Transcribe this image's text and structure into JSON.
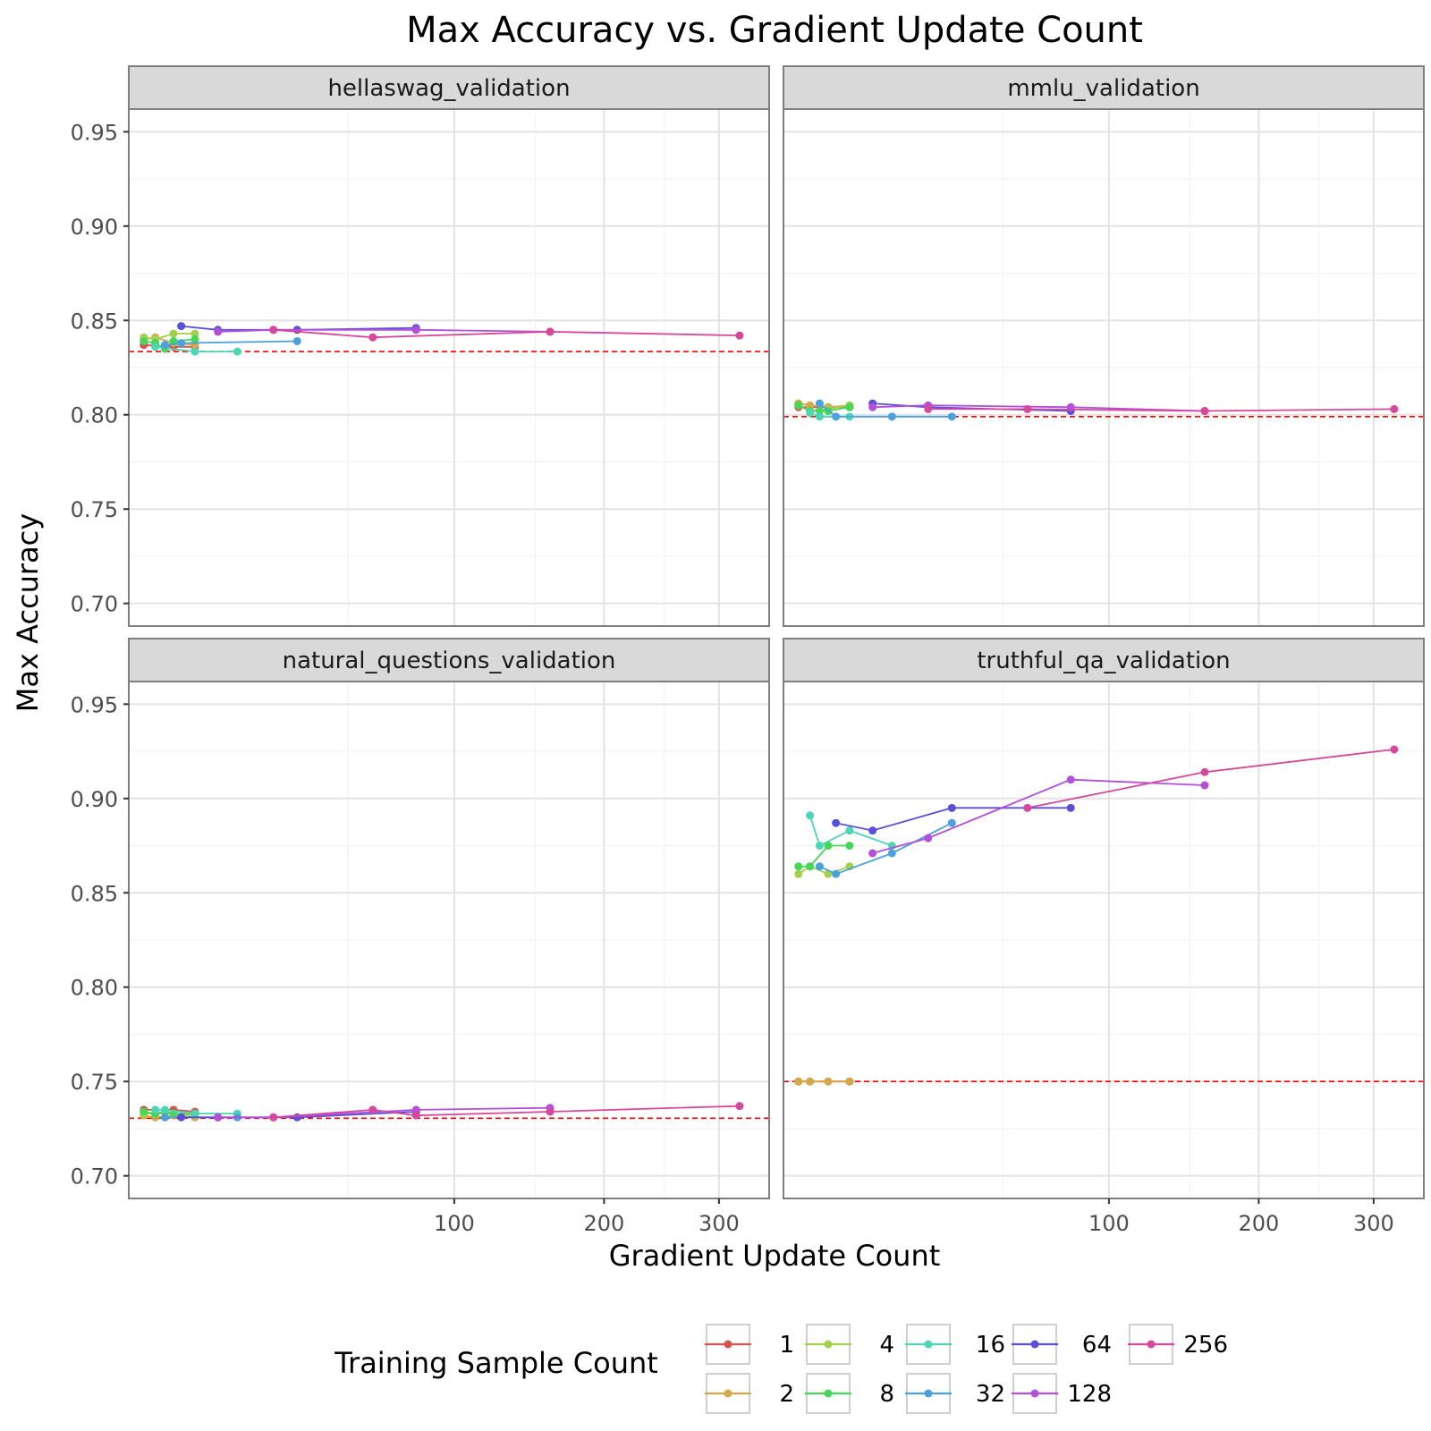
{
  "chart_data": {
    "type": "line",
    "title": "Max Accuracy vs. Gradient Update Count",
    "xlabel": "Gradient Update Count",
    "ylabel": "Max Accuracy",
    "x_scale": "sqrt",
    "xlim": [
      1,
      350
    ],
    "ylim": [
      0.688,
      0.962
    ],
    "x_ticks": [
      100,
      200,
      300
    ],
    "y_ticks": [
      0.7,
      0.75,
      0.8,
      0.85,
      0.9,
      0.95
    ],
    "y_tick_labels": [
      "0.70",
      "0.75",
      "0.80",
      "0.85",
      "0.90",
      "0.95"
    ],
    "grid": true,
    "legend": {
      "title": "Training Sample Count",
      "position": "bottom",
      "entries": [
        "1",
        "2",
        "4",
        "8",
        "16",
        "32",
        "64",
        "128",
        "256"
      ]
    },
    "colors": {
      "1": "#d6524e",
      "2": "#d4a94c",
      "4": "#a4d14d",
      "8": "#47d65a",
      "16": "#4dd6b4",
      "32": "#4ba1dc",
      "64": "#5a4fd8",
      "128": "#b34fd9",
      "256": "#d6489b"
    },
    "baseline_color": "#ff0000",
    "panels": [
      {
        "name": "hellaswag_validation",
        "baseline": 0.8335,
        "series": [
          {
            "name": "1",
            "points": [
              [
                2,
                0.837
              ],
              [
                5,
                0.836
              ],
              [
                8,
                0.836
              ]
            ]
          },
          {
            "name": "2",
            "points": [
              [
                2,
                0.84
              ],
              [
                3,
                0.841
              ],
              [
                5,
                0.838
              ],
              [
                8,
                0.837
              ]
            ]
          },
          {
            "name": "4",
            "points": [
              [
                2,
                0.841
              ],
              [
                3,
                0.84
              ],
              [
                5,
                0.843
              ],
              [
                8,
                0.843
              ]
            ]
          },
          {
            "name": "8",
            "points": [
              [
                2,
                0.839
              ],
              [
                3,
                0.838
              ],
              [
                4,
                0.835
              ],
              [
                5,
                0.839
              ],
              [
                8,
                0.84
              ]
            ]
          },
          {
            "name": "16",
            "points": [
              [
                3,
                0.836
              ],
              [
                8,
                0.8335
              ],
              [
                16,
                0.8335
              ]
            ]
          },
          {
            "name": "32",
            "points": [
              [
                4,
                0.837
              ],
              [
                6,
                0.838
              ],
              [
                32,
                0.839
              ]
            ]
          },
          {
            "name": "64",
            "points": [
              [
                6,
                0.847
              ],
              [
                12,
                0.845
              ],
              [
                32,
                0.845
              ],
              [
                80,
                0.846
              ]
            ]
          },
          {
            "name": "128",
            "points": [
              [
                12,
                0.844
              ],
              [
                25,
                0.845
              ],
              [
                80,
                0.845
              ],
              [
                160,
                0.844
              ]
            ]
          },
          {
            "name": "256",
            "points": [
              [
                25,
                0.845
              ],
              [
                60,
                0.841
              ],
              [
                160,
                0.844
              ],
              [
                320,
                0.842
              ]
            ]
          }
        ]
      },
      {
        "name": "mmlu_validation",
        "baseline": 0.799,
        "series": [
          {
            "name": "1",
            "points": [
              [
                2,
                0.804
              ],
              [
                5,
                0.804
              ],
              [
                8,
                0.804
              ]
            ]
          },
          {
            "name": "2",
            "points": [
              [
                2,
                0.806
              ],
              [
                3,
                0.805
              ],
              [
                5,
                0.804
              ],
              [
                8,
                0.805
              ]
            ]
          },
          {
            "name": "4",
            "points": [
              [
                2,
                0.805
              ],
              [
                3,
                0.802
              ],
              [
                5,
                0.803
              ],
              [
                8,
                0.805
              ]
            ]
          },
          {
            "name": "8",
            "points": [
              [
                2,
                0.805
              ],
              [
                3,
                0.802
              ],
              [
                4,
                0.802
              ],
              [
                5,
                0.802
              ],
              [
                8,
                0.804
              ]
            ]
          },
          {
            "name": "16",
            "points": [
              [
                3,
                0.801
              ],
              [
                4,
                0.799
              ],
              [
                8,
                0.799
              ]
            ]
          },
          {
            "name": "32",
            "points": [
              [
                4,
                0.806
              ],
              [
                6,
                0.799
              ],
              [
                16,
                0.799
              ],
              [
                32,
                0.799
              ]
            ]
          },
          {
            "name": "64",
            "points": [
              [
                12,
                0.806
              ],
              [
                25,
                0.804
              ],
              [
                80,
                0.802
              ]
            ]
          },
          {
            "name": "128",
            "points": [
              [
                12,
                0.804
              ],
              [
                25,
                0.805
              ],
              [
                80,
                0.804
              ],
              [
                160,
                0.802
              ]
            ]
          },
          {
            "name": "256",
            "points": [
              [
                25,
                0.803
              ],
              [
                60,
                0.803
              ],
              [
                160,
                0.802
              ],
              [
                320,
                0.803
              ]
            ]
          }
        ]
      },
      {
        "name": "natural_questions_validation",
        "baseline": 0.7305,
        "series": [
          {
            "name": "1",
            "points": [
              [
                2,
                0.735
              ],
              [
                5,
                0.735
              ],
              [
                8,
                0.734
              ]
            ]
          },
          {
            "name": "2",
            "points": [
              [
                2,
                0.732
              ],
              [
                3,
                0.731
              ],
              [
                5,
                0.732
              ],
              [
                8,
                0.731
              ]
            ]
          },
          {
            "name": "4",
            "points": [
              [
                2,
                0.733
              ],
              [
                3,
                0.733
              ],
              [
                5,
                0.733
              ],
              [
                8,
                0.732
              ]
            ]
          },
          {
            "name": "8",
            "points": [
              [
                2,
                0.734
              ],
              [
                3,
                0.733
              ],
              [
                4,
                0.734
              ],
              [
                5,
                0.733
              ],
              [
                8,
                0.733
              ]
            ]
          },
          {
            "name": "16",
            "points": [
              [
                3,
                0.735
              ],
              [
                4,
                0.735
              ],
              [
                8,
                0.733
              ],
              [
                16,
                0.733
              ]
            ]
          },
          {
            "name": "32",
            "points": [
              [
                4,
                0.731
              ],
              [
                16,
                0.731
              ]
            ]
          },
          {
            "name": "64",
            "points": [
              [
                6,
                0.731
              ],
              [
                12,
                0.731
              ],
              [
                32,
                0.731
              ],
              [
                80,
                0.734
              ]
            ]
          },
          {
            "name": "128",
            "points": [
              [
                12,
                0.731
              ],
              [
                25,
                0.731
              ],
              [
                80,
                0.735
              ],
              [
                160,
                0.736
              ]
            ]
          },
          {
            "name": "256",
            "points": [
              [
                25,
                0.731
              ],
              [
                60,
                0.735
              ],
              [
                80,
                0.732
              ],
              [
                160,
                0.734
              ],
              [
                320,
                0.737
              ]
            ]
          }
        ]
      },
      {
        "name": "truthful_qa_validation",
        "baseline": 0.75,
        "series": [
          {
            "name": "1",
            "points": [
              [
                2,
                0.75
              ],
              [
                3,
                0.75
              ],
              [
                5,
                0.75
              ],
              [
                8,
                0.75
              ]
            ]
          },
          {
            "name": "2",
            "points": [
              [
                2,
                0.75
              ],
              [
                3,
                0.75
              ],
              [
                5,
                0.75
              ],
              [
                8,
                0.75
              ]
            ]
          },
          {
            "name": "4",
            "points": [
              [
                2,
                0.86
              ],
              [
                3,
                0.864
              ],
              [
                5,
                0.86
              ],
              [
                8,
                0.864
              ]
            ]
          },
          {
            "name": "8",
            "points": [
              [
                2,
                0.864
              ],
              [
                3,
                0.864
              ],
              [
                5,
                0.875
              ],
              [
                8,
                0.875
              ]
            ]
          },
          {
            "name": "16",
            "points": [
              [
                3,
                0.891
              ],
              [
                4,
                0.875
              ],
              [
                8,
                0.883
              ],
              [
                16,
                0.875
              ]
            ]
          },
          {
            "name": "32",
            "points": [
              [
                4,
                0.864
              ],
              [
                6,
                0.86
              ],
              [
                16,
                0.871
              ],
              [
                32,
                0.887
              ]
            ]
          },
          {
            "name": "64",
            "points": [
              [
                6,
                0.887
              ],
              [
                12,
                0.883
              ],
              [
                32,
                0.895
              ],
              [
                80,
                0.895
              ]
            ]
          },
          {
            "name": "128",
            "points": [
              [
                12,
                0.871
              ],
              [
                25,
                0.879
              ],
              [
                80,
                0.91
              ],
              [
                160,
                0.907
              ]
            ]
          },
          {
            "name": "256",
            "points": [
              [
                60,
                0.895
              ],
              [
                160,
                0.914
              ],
              [
                320,
                0.926
              ]
            ]
          }
        ]
      }
    ]
  }
}
